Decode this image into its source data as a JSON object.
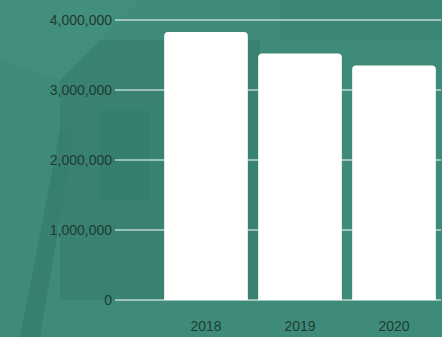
{
  "chart_data": {
    "type": "bar",
    "categories": [
      "2018",
      "2019",
      "2020"
    ],
    "values": [
      3830000,
      3520000,
      3350000
    ],
    "color": "#ffffff",
    "ylim": [
      0,
      4000000
    ],
    "yticks": [
      {
        "value": 0,
        "label": "0"
      },
      {
        "value": 1000000,
        "label": "1,000,000"
      },
      {
        "value": 2000000,
        "label": "2,000,000"
      },
      {
        "value": 3000000,
        "label": "3,000,000"
      },
      {
        "value": 4000000,
        "label": "4,000,000"
      }
    ],
    "grid": true
  }
}
